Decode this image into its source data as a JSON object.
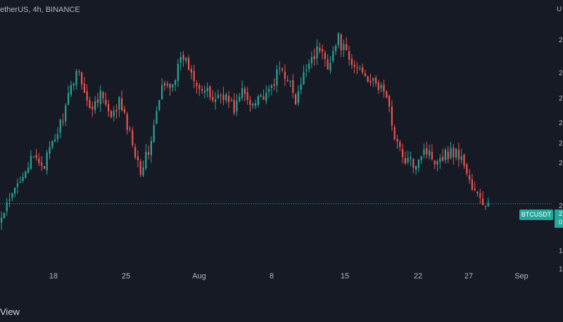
{
  "header": {
    "symbol_title": "etherUS, 4h, BINANCE",
    "price_axis_unit": "U"
  },
  "price_axis": {
    "ticks": [
      "2",
      "2",
      "2",
      "2",
      "2",
      "2",
      "2",
      "1",
      "1"
    ]
  },
  "time_axis": {
    "labels": [
      "18",
      "25",
      "Aug",
      "8",
      "15",
      "22",
      "27",
      "Sep"
    ]
  },
  "last_price": {
    "symbol_label": "BTCUSDT",
    "line1": "2",
    "line2": "0"
  },
  "footer": {
    "watermark": "View"
  },
  "colors": {
    "background": "#161a25",
    "up": "#26a69a",
    "down": "#ef5350",
    "axis_text": "#b2b5be"
  },
  "chart_data": {
    "type": "candlestick",
    "interval": "4h",
    "exchange": "BINANCE",
    "ylim": [
      0,
      100
    ],
    "x_tick_labels": [
      "18",
      "25",
      "Aug",
      "8",
      "15",
      "22",
      "27",
      "Sep"
    ],
    "anchors": [
      [
        0,
        18
      ],
      [
        4,
        27
      ],
      [
        8,
        37
      ],
      [
        12,
        42
      ],
      [
        16,
        40
      ],
      [
        20,
        50
      ],
      [
        24,
        62
      ],
      [
        28,
        78
      ],
      [
        30,
        74
      ],
      [
        33,
        61
      ],
      [
        37,
        69
      ],
      [
        41,
        57
      ],
      [
        44,
        65
      ],
      [
        48,
        52
      ],
      [
        52,
        38
      ],
      [
        55,
        45
      ],
      [
        60,
        70
      ],
      [
        64,
        73
      ],
      [
        68,
        83
      ],
      [
        71,
        77
      ],
      [
        75,
        70
      ],
      [
        79,
        66
      ],
      [
        83,
        68
      ],
      [
        87,
        62
      ],
      [
        90,
        69
      ],
      [
        93,
        64
      ],
      [
        96,
        68
      ],
      [
        99,
        66
      ],
      [
        104,
        78
      ],
      [
        107,
        75
      ],
      [
        110,
        64
      ],
      [
        115,
        82
      ],
      [
        119,
        86
      ],
      [
        122,
        80
      ],
      [
        126,
        90
      ],
      [
        131,
        79
      ],
      [
        135,
        78
      ],
      [
        139,
        72
      ],
      [
        143,
        70
      ],
      [
        147,
        52
      ],
      [
        150,
        42
      ],
      [
        154,
        40
      ],
      [
        158,
        46
      ],
      [
        162,
        42
      ],
      [
        166,
        44
      ],
      [
        170,
        45
      ],
      [
        173,
        40
      ],
      [
        176,
        30
      ],
      [
        180,
        24
      ],
      [
        182,
        24
      ]
    ],
    "last_price_level": 24
  }
}
